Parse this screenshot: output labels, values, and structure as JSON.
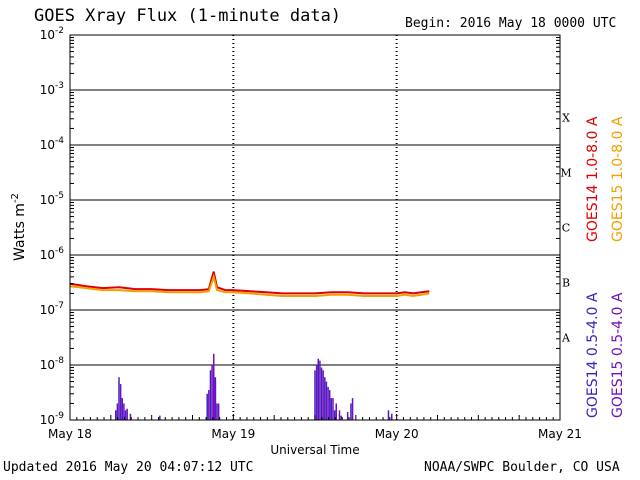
{
  "header": {
    "title": "GOES Xray Flux (1-minute data)",
    "begin_label": "Begin:  2016 May 18 0000 UTC"
  },
  "footer": {
    "updated": "Updated 2016 May 20 04:07:12 UTC",
    "credit": "NOAA/SWPC Boulder, CO USA"
  },
  "colors": {
    "goes14_long": "#e00000",
    "goes15_long": "#f0a000",
    "goes14_short": "#4020c0",
    "goes15_short": "#7010c0"
  },
  "chart_data": {
    "type": "line",
    "xlabel": "Universal Time",
    "ylabel": "Watts m",
    "ylabel_superscript": "-2",
    "y_scale": "log",
    "ylim": [
      1e-09,
      0.01
    ],
    "y_ticks": [
      {
        "base": "10",
        "exp": "-9"
      },
      {
        "base": "10",
        "exp": "-8"
      },
      {
        "base": "10",
        "exp": "-7"
      },
      {
        "base": "10",
        "exp": "-6"
      },
      {
        "base": "10",
        "exp": "-5"
      },
      {
        "base": "10",
        "exp": "-4"
      },
      {
        "base": "10",
        "exp": "-3"
      },
      {
        "base": "10",
        "exp": "-2"
      }
    ],
    "x_ticks": [
      "May 18",
      "May 19",
      "May 20",
      "May 21"
    ],
    "xlim_days": [
      0,
      3
    ],
    "flare_classes": [
      {
        "label": "A",
        "lower": 1e-08
      },
      {
        "label": "B",
        "lower": 1e-07
      },
      {
        "label": "C",
        "lower": 1e-06
      },
      {
        "label": "M",
        "lower": 1e-05
      },
      {
        "label": "X",
        "lower": 0.0001
      }
    ],
    "grid": true,
    "legend_right": [
      {
        "label": "GOES14 1.0-8.0 A",
        "color": "#e00000"
      },
      {
        "label": "GOES15 1.0-8.0 A",
        "color": "#f0a000"
      },
      {
        "label": "GOES14 0.5-4.0 A",
        "color": "#4020c0"
      },
      {
        "label": "GOES15 0.5-4.0 A",
        "color": "#7010c0"
      }
    ],
    "series": [
      {
        "name": "GOES14 1.0-8.0 A",
        "x": [
          0,
          0.1,
          0.2,
          0.3,
          0.4,
          0.5,
          0.6,
          0.7,
          0.8,
          0.85,
          0.88,
          0.9,
          0.95,
          1.0,
          1.1,
          1.2,
          1.3,
          1.4,
          1.5,
          1.6,
          1.7,
          1.8,
          1.9,
          2.0,
          2.05,
          2.1,
          2.15,
          2.2
        ],
        "y": [
          3e-07,
          2.7e-07,
          2.5e-07,
          2.6e-07,
          2.4e-07,
          2.4e-07,
          2.3e-07,
          2.3e-07,
          2.3e-07,
          2.4e-07,
          5e-07,
          2.6e-07,
          2.3e-07,
          2.3e-07,
          2.2e-07,
          2.1e-07,
          2e-07,
          2e-07,
          2e-07,
          2.1e-07,
          2.1e-07,
          2e-07,
          2e-07,
          2e-07,
          2.1e-07,
          2e-07,
          2.1e-07,
          2.2e-07
        ]
      },
      {
        "name": "GOES15 1.0-8.0 A",
        "x": [
          0,
          0.1,
          0.2,
          0.3,
          0.4,
          0.5,
          0.6,
          0.7,
          0.8,
          0.85,
          0.88,
          0.9,
          0.95,
          1.0,
          1.1,
          1.2,
          1.3,
          1.4,
          1.5,
          1.6,
          1.7,
          1.8,
          1.9,
          2.0,
          2.05,
          2.1,
          2.15,
          2.2
        ],
        "y": [
          2.7e-07,
          2.5e-07,
          2.3e-07,
          2.3e-07,
          2.2e-07,
          2.2e-07,
          2.1e-07,
          2.1e-07,
          2.1e-07,
          2.2e-07,
          4e-07,
          2.3e-07,
          2.1e-07,
          2.1e-07,
          2e-07,
          1.9e-07,
          1.8e-07,
          1.8e-07,
          1.8e-07,
          1.9e-07,
          1.9e-07,
          1.8e-07,
          1.8e-07,
          1.8e-07,
          1.9e-07,
          1.8e-07,
          1.9e-07,
          2e-07
        ]
      },
      {
        "name": "GOES14 0.5-4.0 A",
        "x": [
          0.28,
          0.3,
          0.32,
          0.34,
          0.55,
          0.84,
          0.86,
          0.88,
          0.89,
          0.9,
          1.5,
          1.52,
          1.54,
          1.56,
          1.58,
          1.6,
          1.62,
          1.66,
          1.72,
          1.95
        ],
        "y": [
          1.5e-09,
          6e-09,
          2.5e-09,
          1.5e-09,
          1.2e-09,
          3e-09,
          8e-09,
          1.5e-08,
          6e-09,
          2e-09,
          8e-09,
          1.3e-08,
          9e-09,
          6e-09,
          4e-09,
          2.5e-09,
          1.5e-09,
          1.2e-09,
          2e-09,
          1.5e-09
        ]
      },
      {
        "name": "GOES15 0.5-4.0 A",
        "x": [
          0.29,
          0.31,
          0.33,
          0.35,
          0.37,
          0.85,
          0.87,
          0.88,
          0.89,
          0.91,
          1.51,
          1.53,
          1.55,
          1.57,
          1.59,
          1.61,
          1.63,
          1.65,
          1.7,
          1.73,
          1.97
        ],
        "y": [
          2e-09,
          4.5e-09,
          2e-09,
          1.6e-09,
          1.3e-09,
          3.5e-09,
          1e-08,
          1.6e-08,
          5e-09,
          2e-09,
          1e-08,
          1.2e-08,
          8e-09,
          5e-09,
          3.5e-09,
          2.5e-09,
          2e-09,
          1.5e-09,
          1.4e-09,
          2.5e-09,
          1.3e-09
        ]
      }
    ]
  }
}
